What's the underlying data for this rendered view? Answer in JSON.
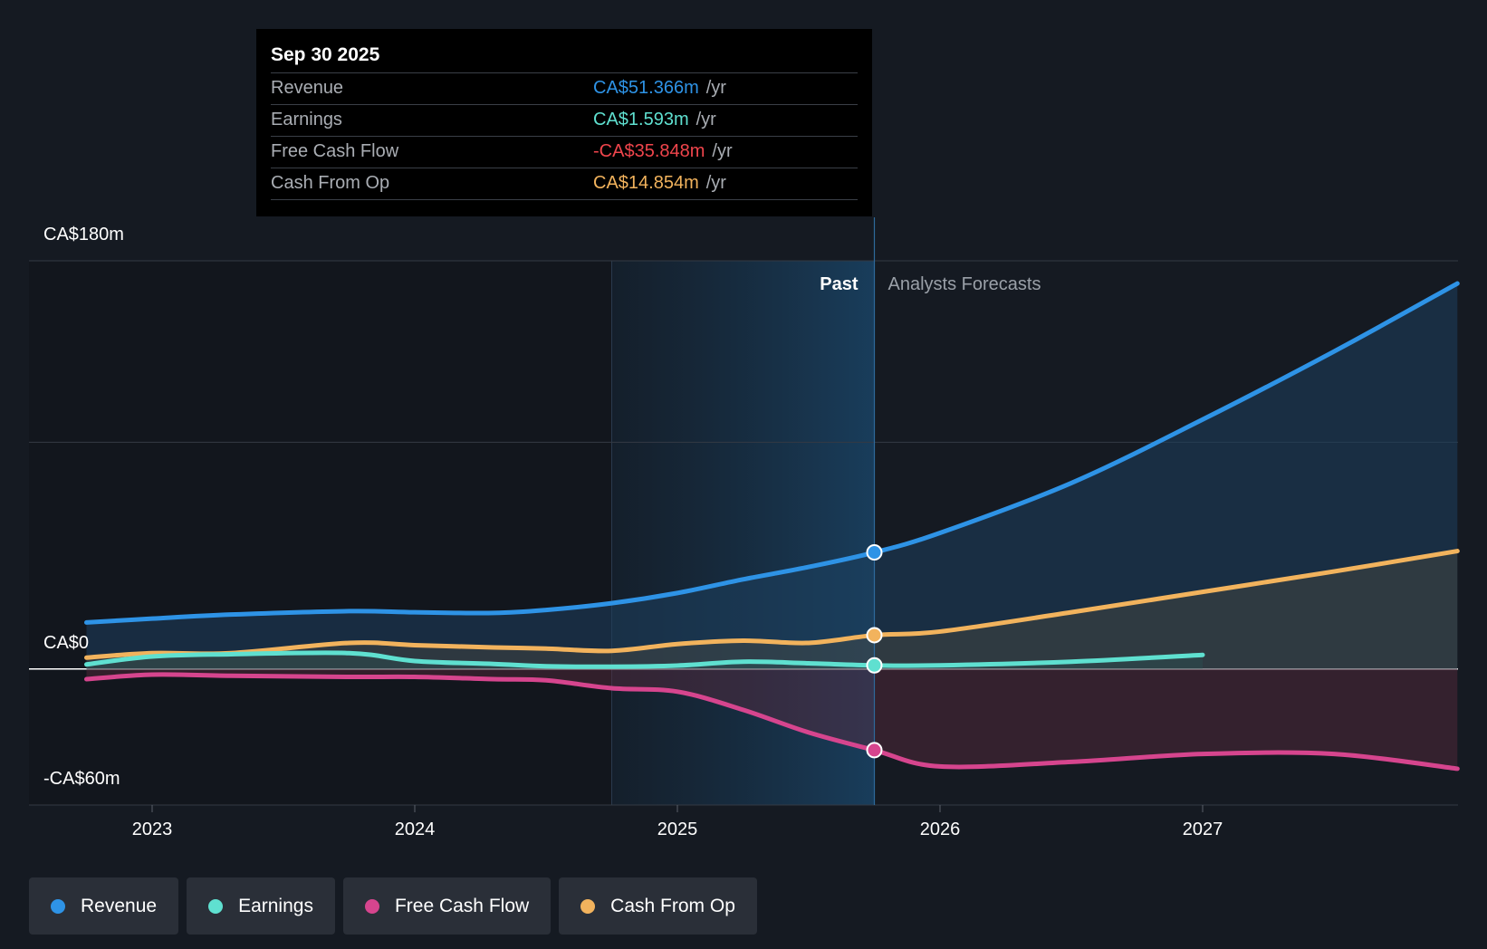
{
  "tooltip": {
    "date": "Sep 30 2025",
    "rows": [
      {
        "label": "Revenue",
        "value": "CA$51.366m",
        "unit": "/yr",
        "color": "#2e93e6"
      },
      {
        "label": "Earnings",
        "value": "CA$1.593m",
        "unit": "/yr",
        "color": "#5fe0d0"
      },
      {
        "label": "Free Cash Flow",
        "value": "-CA$35.848m",
        "unit": "/yr",
        "color": "#f0454c"
      },
      {
        "label": "Cash From Op",
        "value": "CA$14.854m",
        "unit": "/yr",
        "color": "#f2b35d"
      }
    ]
  },
  "legend": [
    {
      "label": "Revenue",
      "color": "#2e93e6"
    },
    {
      "label": "Earnings",
      "color": "#5fe0d0"
    },
    {
      "label": "Free Cash Flow",
      "color": "#d6458e"
    },
    {
      "label": "Cash From Op",
      "color": "#f2b35d"
    }
  ],
  "chart_data": {
    "type": "line",
    "title": "",
    "xlabel": "",
    "ylabel": "",
    "ylim": [
      -60,
      180
    ],
    "xlim": [
      2022.75,
      2027.97
    ],
    "y_tick_labels": [
      {
        "value": 180,
        "label": "CA$180m"
      },
      {
        "value": 0,
        "label": "CA$0"
      },
      {
        "value": -60,
        "label": "-CA$60m"
      }
    ],
    "gridlines": [
      180,
      100,
      0,
      -60
    ],
    "x_ticks": [
      {
        "value": 2023,
        "label": "2023"
      },
      {
        "value": 2024,
        "label": "2024"
      },
      {
        "value": 2025,
        "label": "2025"
      },
      {
        "value": 2026,
        "label": "2026"
      },
      {
        "value": 2027,
        "label": "2027"
      }
    ],
    "past_label": "Past",
    "forecast_label": "Analysts Forecasts",
    "past_end": 2025.75,
    "highlight_start": 2024.75,
    "series": [
      {
        "name": "Revenue",
        "color": "#2e93e6",
        "x": [
          2022.75,
          2023.0,
          2023.3,
          2023.75,
          2024.0,
          2024.3,
          2024.5,
          2024.75,
          2025.0,
          2025.25,
          2025.5,
          2025.75,
          2026.0,
          2026.5,
          2027.0,
          2027.5,
          2027.97
        ],
        "y": [
          20.5,
          22.2,
          24,
          25.5,
          25,
          24.7,
          26,
          29,
          33.5,
          39.5,
          45,
          51.4,
          60,
          82,
          110,
          140,
          170
        ]
      },
      {
        "name": "Earnings",
        "color": "#5fe0d0",
        "x": [
          2022.75,
          2023.0,
          2023.3,
          2023.75,
          2024.0,
          2024.3,
          2024.5,
          2024.75,
          2025.0,
          2025.25,
          2025.5,
          2025.75,
          2026.0,
          2026.5,
          2027.0
        ],
        "y": [
          2,
          5.5,
          6.5,
          7,
          3.5,
          2.2,
          1.2,
          1,
          1.5,
          3.2,
          2.5,
          1.6,
          1.6,
          3.2,
          6.2
        ]
      },
      {
        "name": "Free Cash Flow",
        "color": "#d6458e",
        "x": [
          2022.75,
          2023.0,
          2023.3,
          2023.75,
          2024.0,
          2024.3,
          2024.5,
          2024.75,
          2025.0,
          2025.25,
          2025.5,
          2025.75,
          2026.0,
          2026.5,
          2027.0,
          2027.5,
          2027.97
        ],
        "y": [
          -4.5,
          -2.5,
          -3,
          -3.5,
          -3.5,
          -4.5,
          -5,
          -8.5,
          -10,
          -18,
          -28,
          -35.8,
          -43,
          -41,
          -37.5,
          -37.5,
          -44
        ]
      },
      {
        "name": "Cash From Op",
        "color": "#f2b35d",
        "x": [
          2022.75,
          2023.0,
          2023.3,
          2023.75,
          2024.0,
          2024.3,
          2024.5,
          2024.75,
          2025.0,
          2025.25,
          2025.5,
          2025.75,
          2026.0,
          2026.5,
          2027.0,
          2027.5,
          2027.97
        ],
        "y": [
          5,
          7,
          7,
          11.5,
          10.5,
          9.5,
          9,
          8,
          11,
          12.5,
          11.5,
          14.9,
          16.5,
          25,
          34,
          43,
          52
        ]
      }
    ]
  }
}
